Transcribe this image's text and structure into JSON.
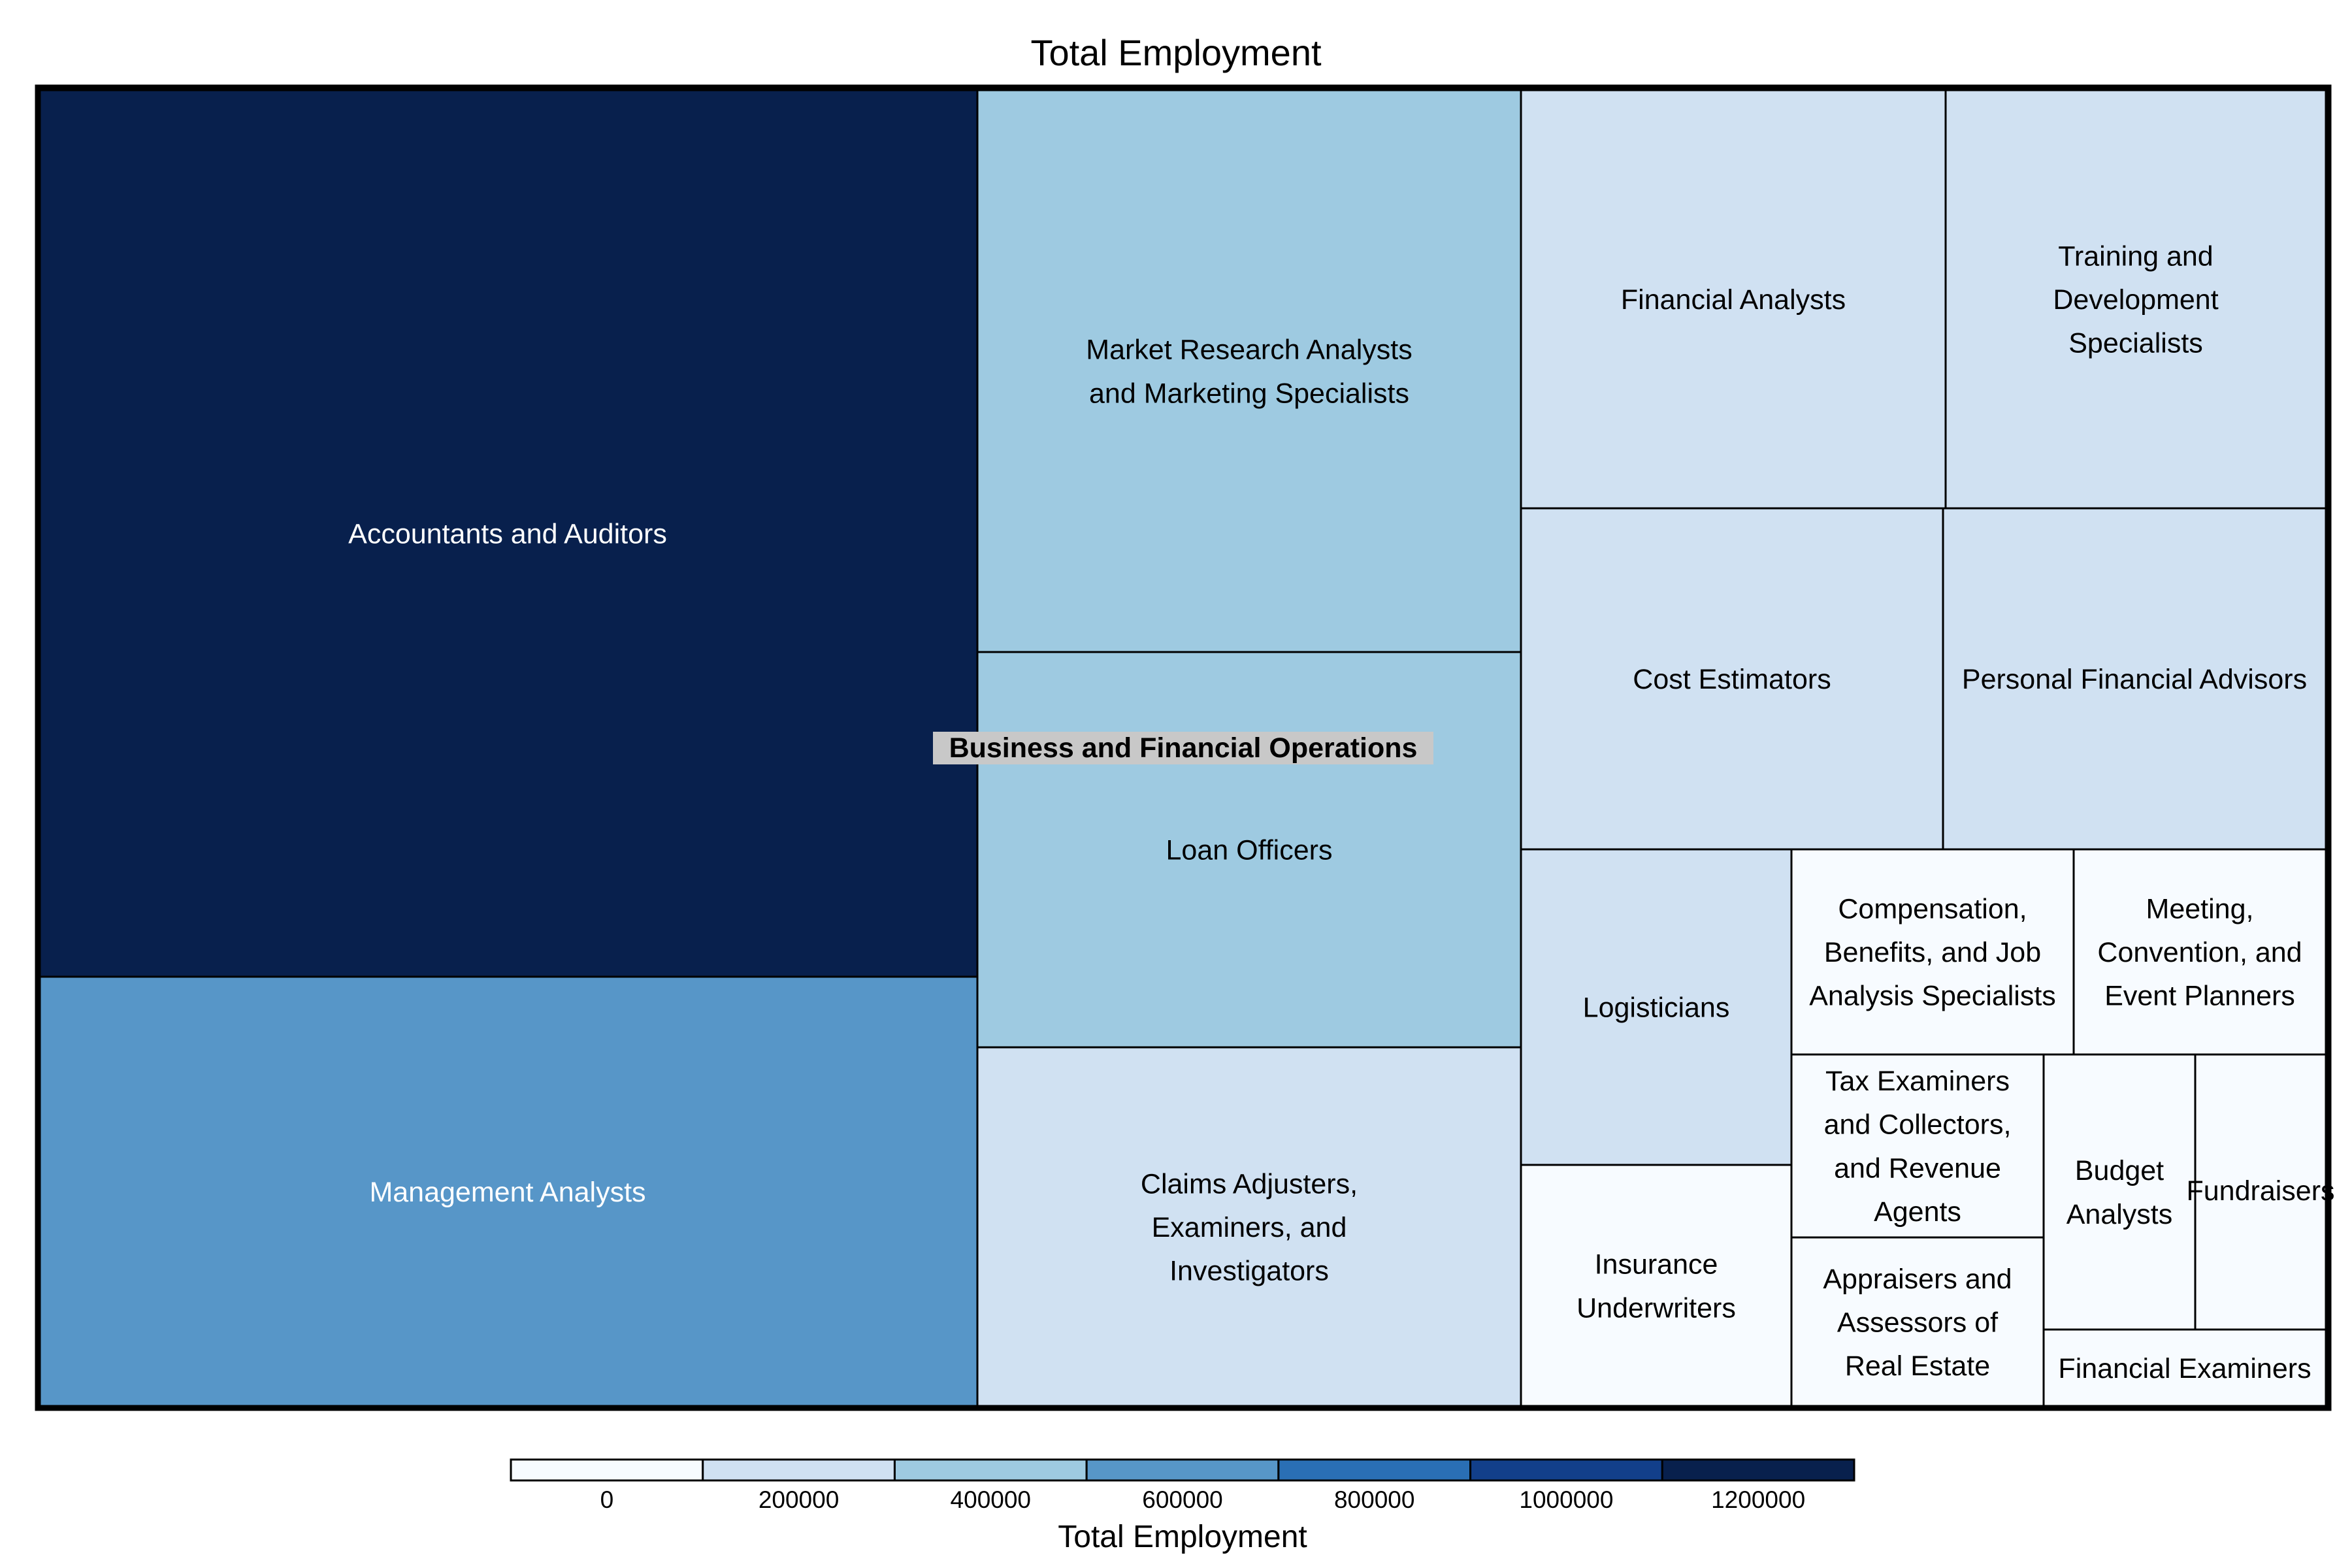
{
  "chart_data": {
    "type": "treemap",
    "title": "Total Employment",
    "root": "Business and Financial Operations",
    "value_label": "Total Employment",
    "items": [
      {
        "name": "Accountants and Auditors",
        "value": 1280000
      },
      {
        "name": "Management Analysts",
        "value": 610000
      },
      {
        "name": "Market Research Analysts and Marketing Specialists",
        "value": 420000
      },
      {
        "name": "Loan Officers",
        "value": 300000
      },
      {
        "name": "Claims Adjusters, Examiners, and Investigators",
        "value": 260000
      },
      {
        "name": "Financial Analysts",
        "value": 200000
      },
      {
        "name": "Training and Development Specialists",
        "value": 180000
      },
      {
        "name": "Cost Estimators",
        "value": 165000
      },
      {
        "name": "Personal Financial Advisors",
        "value": 165000
      },
      {
        "name": "Logisticians",
        "value": 105000
      },
      {
        "name": "Insurance Underwriters",
        "value": 95000
      },
      {
        "name": "Compensation, Benefits, and Job Analysis Specialists",
        "value": 80000
      },
      {
        "name": "Meeting, Convention, and Event Planners",
        "value": 80000
      },
      {
        "name": "Tax Examiners and Collectors, and Revenue Agents",
        "value": 60000
      },
      {
        "name": "Appraisers and Assessors of Real Estate",
        "value": 60000
      },
      {
        "name": "Budget Analysts",
        "value": 50000
      },
      {
        "name": "Fundraisers",
        "value": 45000
      },
      {
        "name": "Financial Examiners",
        "value": 35000
      }
    ],
    "colorscale": {
      "title": "Total Employment",
      "ticks": [
        0,
        200000,
        400000,
        600000,
        800000,
        1000000,
        1200000
      ],
      "range": [
        -100000,
        1300000
      ],
      "colors": [
        "#f7fbff",
        "#d0e1f2",
        "#9ecae1",
        "#5796c8",
        "#2a6fb5",
        "#123f8a",
        "#08204d"
      ]
    }
  }
}
